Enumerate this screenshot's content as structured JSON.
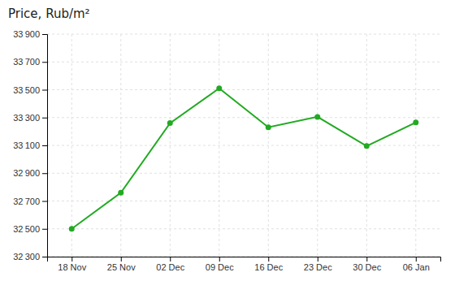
{
  "chart_data": {
    "type": "line",
    "title": "Price, Rub/m²",
    "categories": [
      "18 Nov",
      "25 Nov",
      "02 Dec",
      "09 Dec",
      "16 Dec",
      "23 Dec",
      "30 Dec",
      "06 Jan"
    ],
    "values": [
      32500,
      32760,
      33260,
      33510,
      33230,
      33305,
      33095,
      33265
    ],
    "color": "#22aa22",
    "marker": "circle",
    "ylim": [
      32300,
      33900
    ],
    "yticks": [
      {
        "value": 32300,
        "label": "32 300"
      },
      {
        "value": 32500,
        "label": "32 500"
      },
      {
        "value": 32700,
        "label": "32 700"
      },
      {
        "value": 32900,
        "label": "32 900"
      },
      {
        "value": 33100,
        "label": "33 100"
      },
      {
        "value": 33300,
        "label": "33 300"
      },
      {
        "value": 33500,
        "label": "33 500"
      },
      {
        "value": 33700,
        "label": "33 700"
      },
      {
        "value": 33900,
        "label": "33 900"
      }
    ],
    "grid": true
  }
}
